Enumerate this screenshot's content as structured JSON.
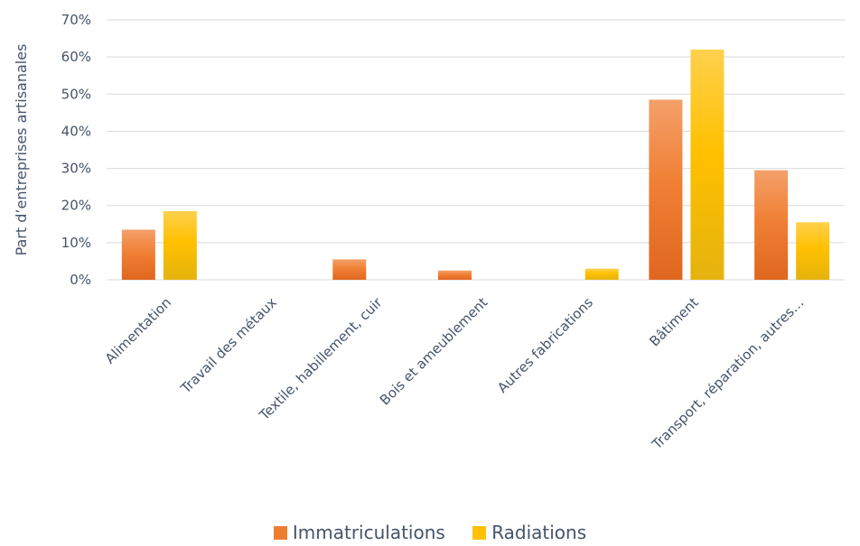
{
  "chart_data": {
    "type": "bar",
    "categories": [
      "Alimentation",
      "Travail des métaux",
      "Textile, habillement, cuir",
      "Bois et ameublement",
      "Autres fabrications",
      "Bâtiment",
      "Transport, réparation, autres…"
    ],
    "series": [
      {
        "name": "Immatriculations",
        "values": [
          13.5,
          0,
          5.5,
          2.5,
          0,
          48.5,
          29.5
        ],
        "color": "#ed7d31"
      },
      {
        "name": "Radiations",
        "values": [
          18.5,
          0,
          0,
          0,
          3,
          62,
          15.5
        ],
        "color": "#ffc000"
      }
    ],
    "ylabel": "Part d’entreprises artisanales",
    "xlabel": "",
    "ylim": [
      0,
      70
    ],
    "yticks": [
      0,
      10,
      20,
      30,
      40,
      50,
      60,
      70
    ],
    "ytick_labels": [
      "0%",
      "10%",
      "20%",
      "30%",
      "40%",
      "50%",
      "60%",
      "70%"
    ],
    "grid": true,
    "legend_position": "bottom"
  }
}
